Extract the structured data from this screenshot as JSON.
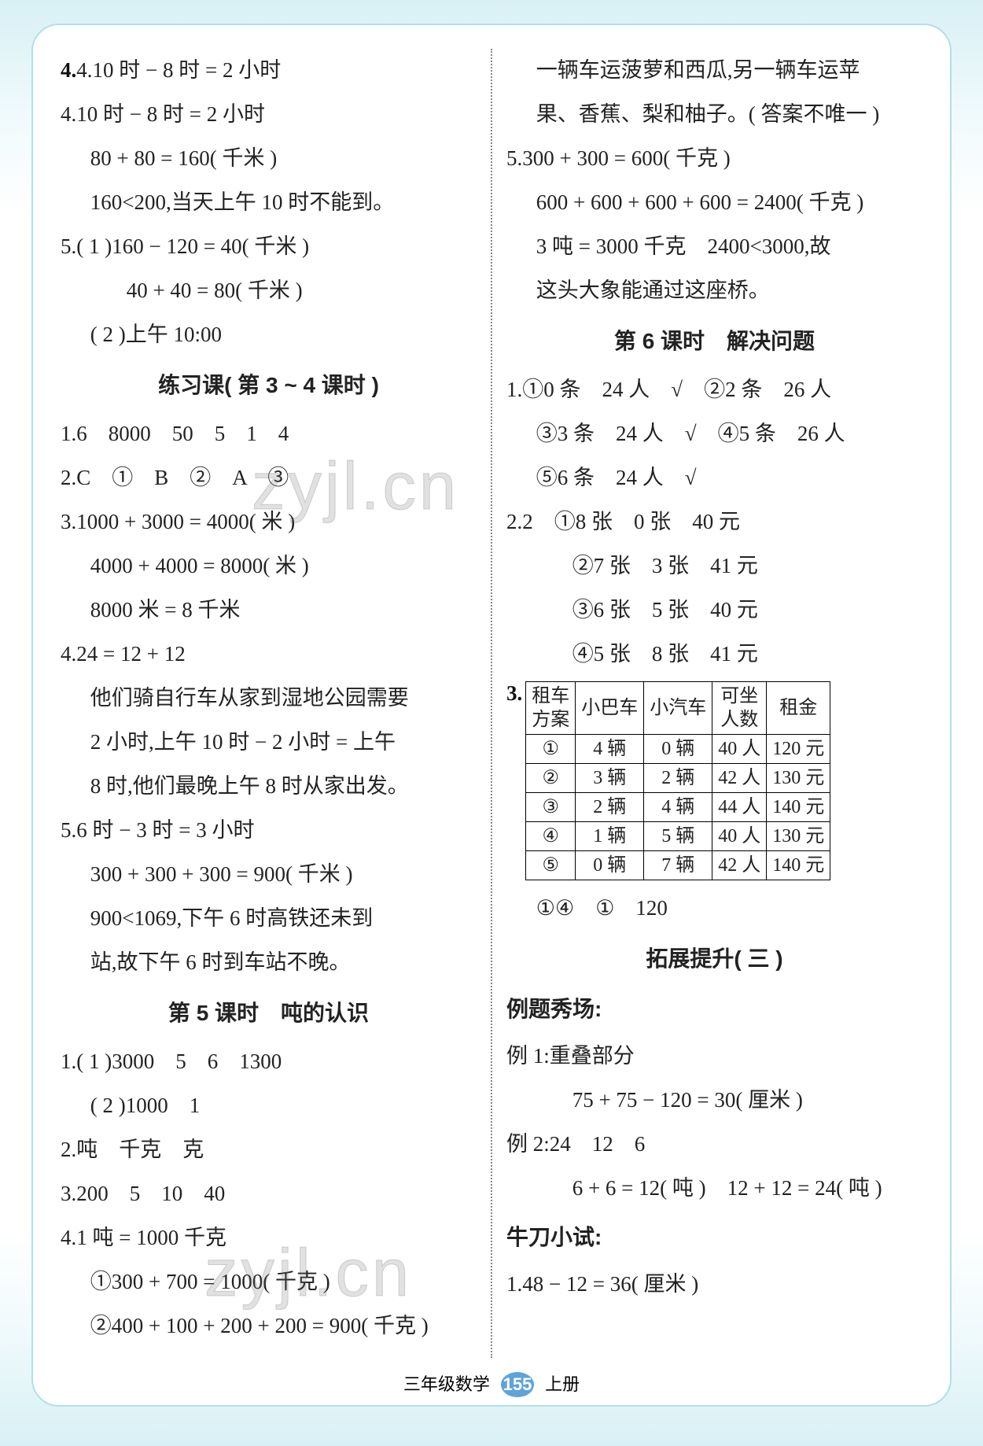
{
  "left": {
    "p4": {
      "l1": "4.10 时 − 8 时 = 2 小时",
      "l2": "80 + 80 = 160( 千米 )",
      "l3": "160<200,当天上午 10 时不能到。"
    },
    "p5a": {
      "l1": "5.( 1 )160 − 120 = 40( 千米 )",
      "l2": "40 + 40 = 80( 千米 )",
      "l3": "( 2 )上午 10:00"
    },
    "title1": "练习课( 第 3 ~ 4 课时 )",
    "q1": "1.6　8000　50　5　1　4",
    "q2": "2.C　①　B　②　A　③",
    "q3": {
      "l1": "3.1000 + 3000 = 4000( 米 )",
      "l2": "4000 + 4000 = 8000( 米 )",
      "l3": "8000 米 = 8 千米"
    },
    "q4": {
      "l1": "4.24 = 12 + 12",
      "l2": "他们骑自行车从家到湿地公园需要",
      "l3": "2 小时,上午 10 时 − 2 小时 = 上午",
      "l4": "8 时,他们最晚上午 8 时从家出发。"
    },
    "q5": {
      "l1": "5.6 时 − 3 时 = 3 小时",
      "l2": "300 + 300 + 300 = 900( 千米 )",
      "l3": "900<1069,下午 6 时高铁还未到",
      "l4": "站,故下午 6 时到车站不晚。"
    },
    "title2": "第 5 课时　吨的认识",
    "t5q1a": "1.( 1 )3000　5　6　1300",
    "t5q1b": "( 2 )1000　1",
    "t5q2": "2.吨　千克　克",
    "t5q3": "3.200　5　10　40",
    "t5q4": {
      "l1": "4.1 吨 = 1000 千克",
      "l2": "①300 + 700 = 1000( 千克 )",
      "l3": "②400 + 100 + 200 + 200 = 900( 千克 )"
    }
  },
  "right": {
    "cont": {
      "l1": "一辆车运菠萝和西瓜,另一辆车运苹",
      "l2": "果、香蕉、梨和柚子。( 答案不唯一 )"
    },
    "p5": {
      "l1": "5.300 + 300 = 600( 千克 )",
      "l2": "600 + 600 + 600 + 600 = 2400( 千克 )",
      "l3": "3 吨 = 3000 千克　2400<3000,故",
      "l4": "这头大象能通过这座桥。"
    },
    "title1": "第 6 课时　解决问题",
    "q1": {
      "l1": "1.①0 条　24 人　√　②2 条　26 人",
      "l2": "③3 条　24 人　√　④5 条　26 人",
      "l3": "⑤6 条　24 人　√"
    },
    "q2": {
      "l1": "2.2　①8 张　0 张　40 元",
      "l2": "②7 张　3 张　41 元",
      "l3": "③6 张　5 张　40 元",
      "l4": "④5 张　8 张　41 元"
    },
    "q3label": "3.",
    "table": {
      "headers": [
        "租车\n方案",
        "小巴车",
        "小汽车",
        "可坐\n人数",
        "租金"
      ],
      "rows": [
        [
          "①",
          "4 辆",
          "0 辆",
          "40 人",
          "120 元"
        ],
        [
          "②",
          "3 辆",
          "2 辆",
          "42 人",
          "130 元"
        ],
        [
          "③",
          "2 辆",
          "4 辆",
          "44 人",
          "140 元"
        ],
        [
          "④",
          "1 辆",
          "5 辆",
          "40 人",
          "130 元"
        ],
        [
          "⑤",
          "0 辆",
          "7 辆",
          "42 人",
          "140 元"
        ]
      ]
    },
    "q3ans": "①④　①　120",
    "title2": "拓展提升( 三 )",
    "ex_label": "例题秀场:",
    "ex1a": "例 1:重叠部分",
    "ex1b": "75 + 75 − 120 = 30( 厘米 )",
    "ex2a": "例 2:24　12　6",
    "ex2b": "6 + 6 = 12( 吨 )　12 + 12 = 24( 吨 )",
    "nd_label": "牛刀小试:",
    "nd1": "1.48 − 12 = 36( 厘米 )"
  },
  "footer": {
    "grade": "三年级数学",
    "page": "155",
    "vol": "上册"
  },
  "watermark": "zyjl.cn"
}
